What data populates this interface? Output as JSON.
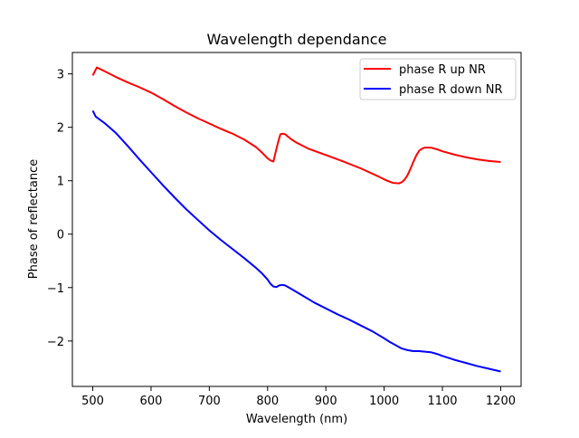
{
  "chart_data": {
    "type": "line",
    "title": "Wavelength dependance",
    "xlabel": "Wavelength (nm)",
    "ylabel": "Phase of reflectance",
    "xlim": [
      465,
      1235
    ],
    "ylim": [
      -2.85,
      3.4
    ],
    "xticks": [
      500,
      600,
      700,
      800,
      900,
      1000,
      1100,
      1200
    ],
    "xtick_labels": [
      "500",
      "600",
      "700",
      "800",
      "900",
      "1000",
      "1100",
      "1200"
    ],
    "yticks": [
      -2,
      -1,
      0,
      1,
      2,
      3
    ],
    "ytick_labels": [
      "−2",
      "−1",
      "0",
      "1",
      "2",
      "3"
    ],
    "grid": false,
    "legend_position": "upper right",
    "series": [
      {
        "name": "phase R up NR",
        "color": "#ff0000",
        "x": [
          500,
          507,
          520,
          540,
          560,
          580,
          600,
          620,
          640,
          660,
          680,
          700,
          720,
          740,
          760,
          780,
          790,
          800,
          805,
          810,
          813,
          818,
          822,
          826,
          830,
          840,
          850,
          870,
          900,
          930,
          960,
          990,
          1005,
          1015,
          1025,
          1030,
          1035,
          1040,
          1045,
          1050,
          1055,
          1060,
          1065,
          1070,
          1080,
          1090,
          1100,
          1120,
          1140,
          1160,
          1180,
          1200
        ],
        "y": [
          2.97,
          3.12,
          3.05,
          2.94,
          2.84,
          2.75,
          2.65,
          2.53,
          2.4,
          2.28,
          2.17,
          2.07,
          1.97,
          1.88,
          1.77,
          1.63,
          1.53,
          1.42,
          1.38,
          1.36,
          1.5,
          1.72,
          1.87,
          1.88,
          1.87,
          1.78,
          1.71,
          1.6,
          1.48,
          1.36,
          1.23,
          1.08,
          1.0,
          0.96,
          0.95,
          0.97,
          1.02,
          1.1,
          1.22,
          1.35,
          1.47,
          1.56,
          1.6,
          1.62,
          1.62,
          1.59,
          1.55,
          1.49,
          1.44,
          1.4,
          1.37,
          1.35
        ]
      },
      {
        "name": "phase R down NR",
        "color": "#0000ff",
        "x": [
          500,
          505,
          510,
          520,
          540,
          560,
          580,
          600,
          620,
          640,
          660,
          680,
          700,
          720,
          740,
          760,
          780,
          790,
          800,
          805,
          810,
          815,
          820,
          825,
          830,
          840,
          860,
          880,
          900,
          920,
          940,
          960,
          980,
          1000,
          1010,
          1020,
          1030,
          1040,
          1050,
          1060,
          1070,
          1080,
          1090,
          1100,
          1120,
          1140,
          1160,
          1180,
          1200
        ],
        "y": [
          2.31,
          2.2,
          2.16,
          2.08,
          1.89,
          1.65,
          1.4,
          1.16,
          0.92,
          0.69,
          0.47,
          0.27,
          0.07,
          -0.11,
          -0.28,
          -0.45,
          -0.63,
          -0.73,
          -0.85,
          -0.93,
          -0.98,
          -0.99,
          -0.96,
          -0.95,
          -0.96,
          -1.02,
          -1.15,
          -1.28,
          -1.39,
          -1.5,
          -1.6,
          -1.71,
          -1.82,
          -1.95,
          -2.02,
          -2.08,
          -2.14,
          -2.17,
          -2.19,
          -2.19,
          -2.2,
          -2.21,
          -2.24,
          -2.28,
          -2.35,
          -2.41,
          -2.47,
          -2.52,
          -2.57
        ]
      }
    ]
  }
}
